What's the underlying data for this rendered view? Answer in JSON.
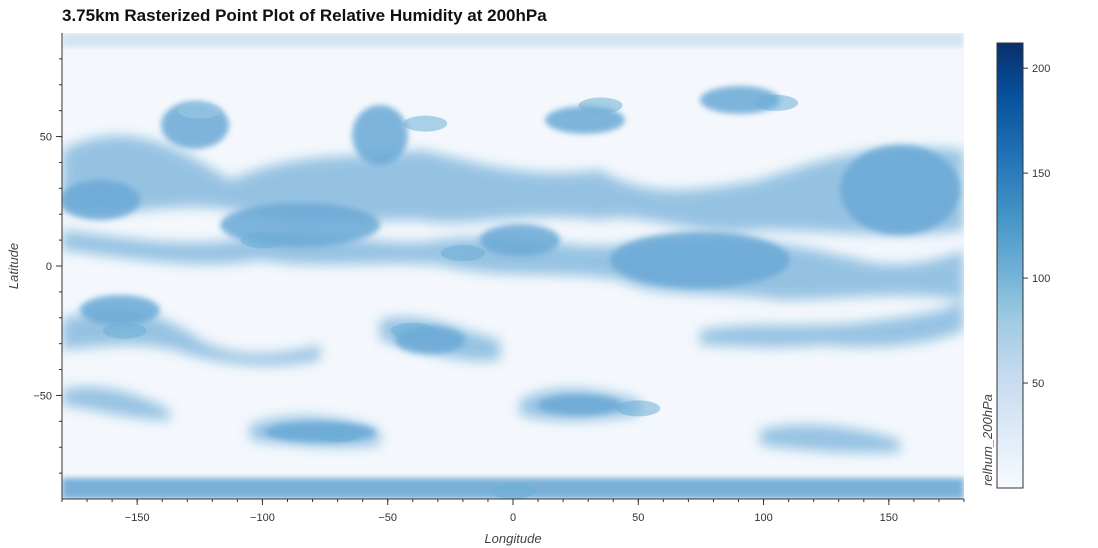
{
  "chart_data": {
    "type": "heatmap",
    "title": "3.75km Rasterized Point Plot of Relative Humidity at 200hPa",
    "xlabel": "Longitude",
    "ylabel": "Latitude",
    "xlim": [
      -180,
      180
    ],
    "ylim": [
      -90,
      90
    ],
    "x_ticks": [
      -150,
      -100,
      -50,
      0,
      50,
      100,
      150
    ],
    "y_ticks": [
      50,
      0,
      -50
    ],
    "colorbar": {
      "label": "relhum_200hPa",
      "range": [
        0,
        212
      ],
      "ticks": [
        50,
        100,
        150,
        200
      ],
      "colormap": [
        "#f7fbff",
        "#deebf7",
        "#c6dbef",
        "#9ecae1",
        "#6baed6",
        "#4292c6",
        "#2171b5",
        "#08519c",
        "#08306b"
      ]
    },
    "features": [
      {
        "lon": -125,
        "lat": 60,
        "value": 90
      },
      {
        "lon": -35,
        "lat": 55,
        "value": 95
      },
      {
        "lon": 35,
        "lat": 62,
        "value": 100
      },
      {
        "lon": 105,
        "lat": 63,
        "value": 95
      },
      {
        "lon": 155,
        "lat": 35,
        "value": 110
      },
      {
        "lon": 70,
        "lat": 5,
        "value": 110
      },
      {
        "lon": -100,
        "lat": 10,
        "value": 100
      },
      {
        "lon": -20,
        "lat": 5,
        "value": 95
      },
      {
        "lon": -155,
        "lat": -25,
        "value": 95
      },
      {
        "lon": -40,
        "lat": -25,
        "value": 95
      },
      {
        "lon": 50,
        "lat": -55,
        "value": 105
      },
      {
        "lon": -70,
        "lat": -65,
        "value": 95
      },
      {
        "lon": 0,
        "lat": -87,
        "value": 115
      }
    ]
  }
}
